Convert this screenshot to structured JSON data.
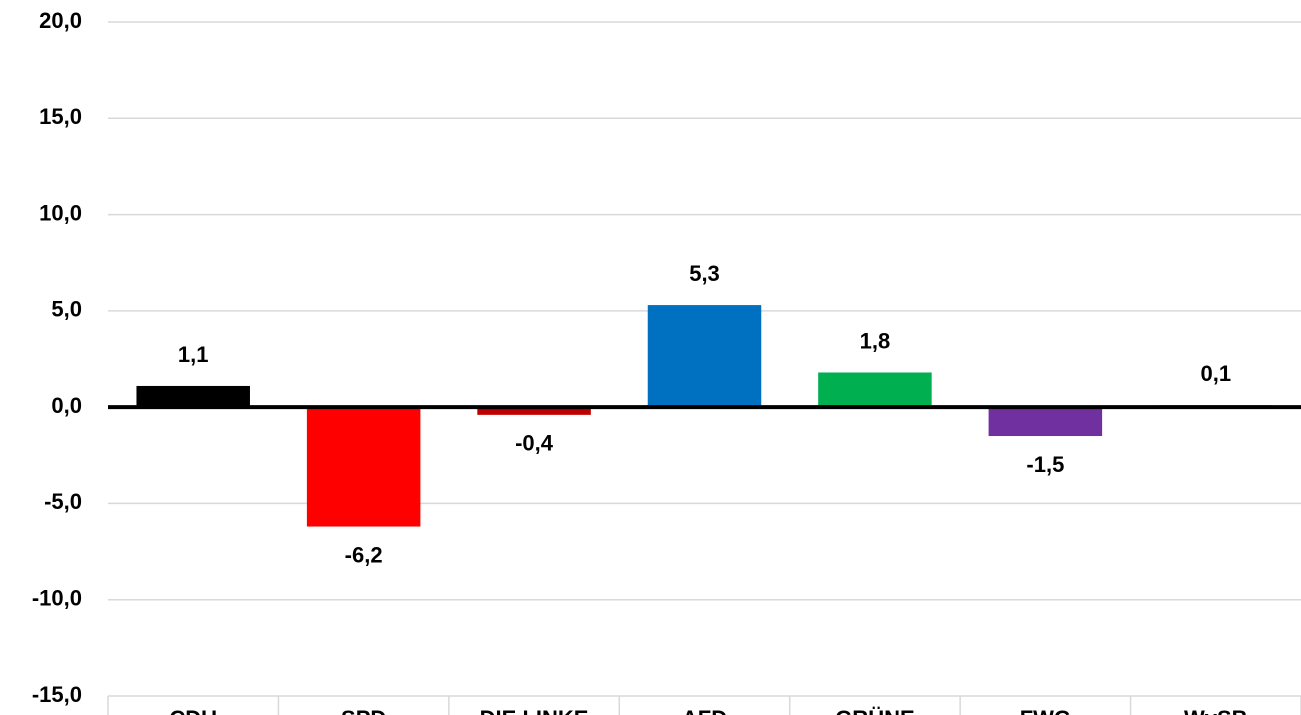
{
  "chart_data": {
    "type": "bar",
    "categories": [
      "CDU",
      "SPD",
      "DIE LINKE",
      "AFD",
      "GRÜNE",
      "FWG",
      "WvSB"
    ],
    "values": [
      1.1,
      -6.2,
      -0.4,
      5.3,
      1.8,
      -1.5,
      0.1
    ],
    "value_labels": [
      "1,1",
      "-6,2",
      "-0,4",
      "5,3",
      "1,8",
      "-1,5",
      "0,1"
    ],
    "colors": [
      "#000000",
      "#ff0000",
      "#c00000",
      "#0070c0",
      "#00b050",
      "#7030a0",
      "#ed7d31"
    ],
    "ylim": [
      -15,
      20
    ],
    "yticks": [
      {
        "value": -15,
        "label": "-15,0"
      },
      {
        "value": -10,
        "label": "-10,0"
      },
      {
        "value": -5,
        "label": "-5,0"
      },
      {
        "value": 0,
        "label": "0,0"
      },
      {
        "value": 5,
        "label": "5,0"
      },
      {
        "value": 10,
        "label": "10,0"
      },
      {
        "value": 15,
        "label": "15,0"
      },
      {
        "value": 20,
        "label": "20,0"
      }
    ],
    "grid": true
  }
}
